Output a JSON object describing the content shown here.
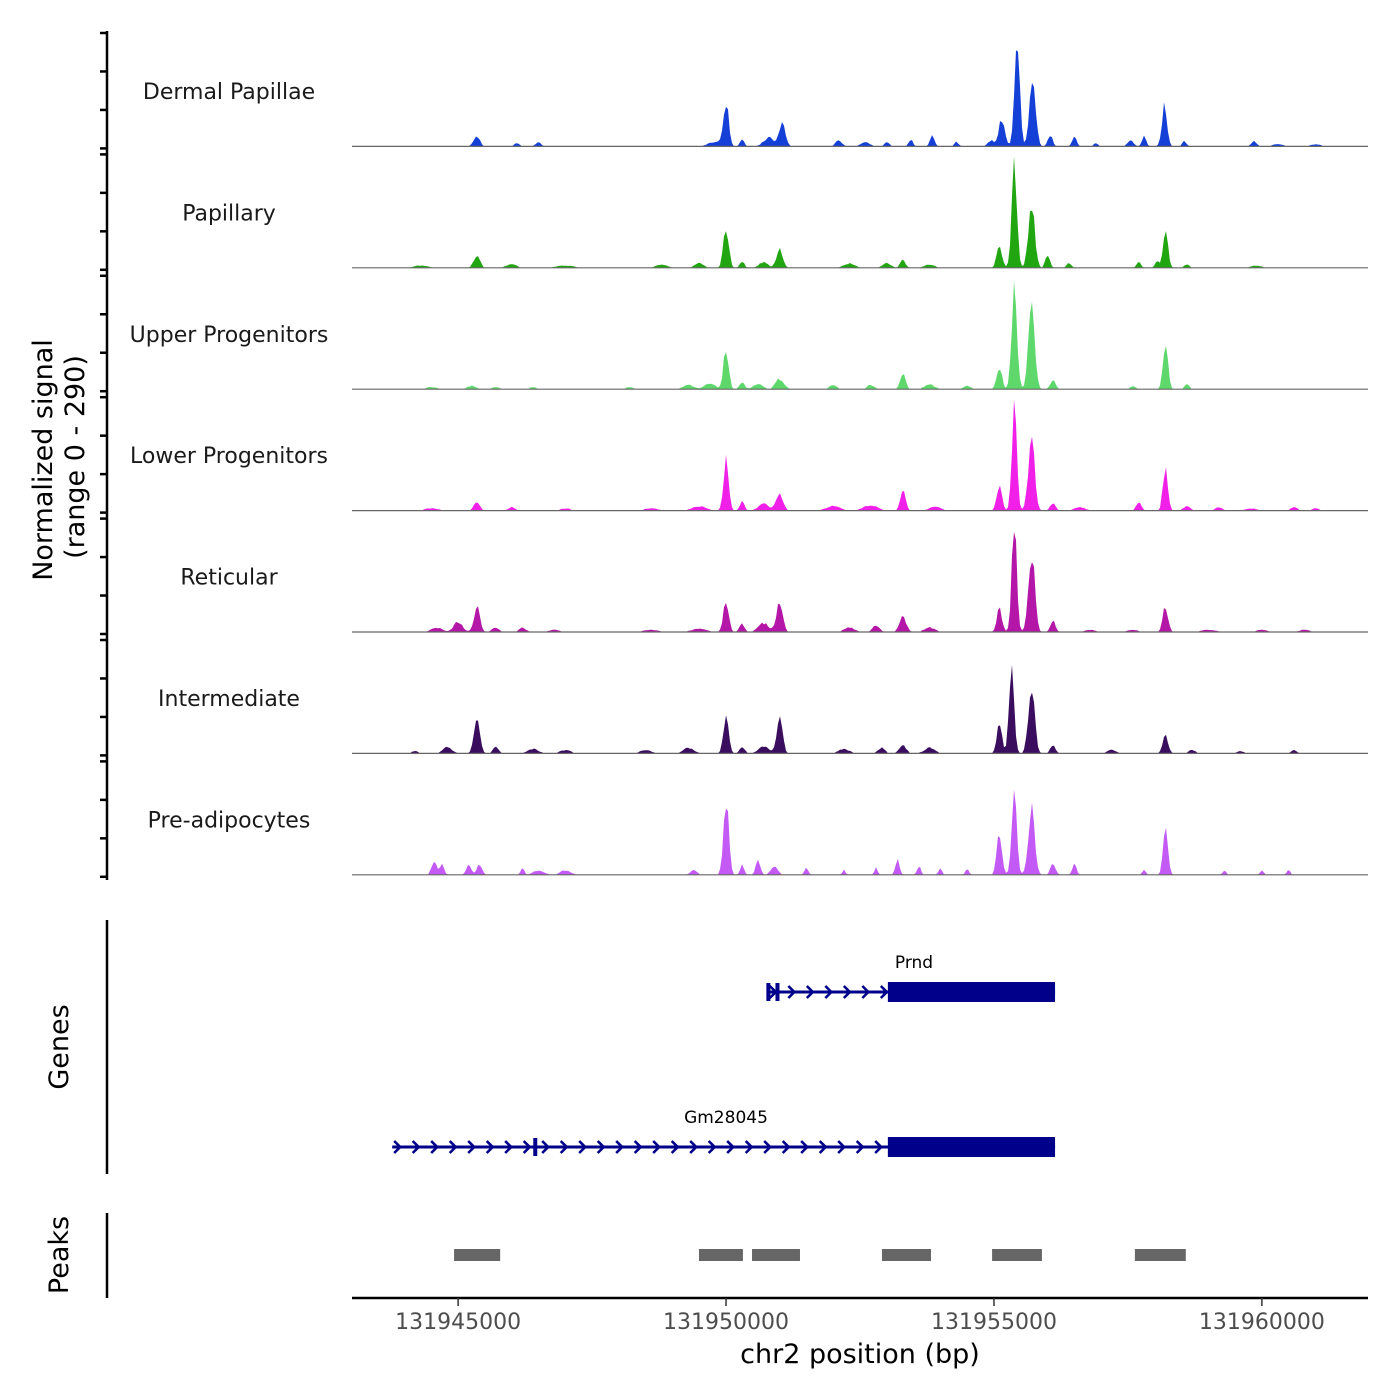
{
  "chart_data": {
    "type": "area",
    "title": "",
    "ylabel": "Normalized signal\n(range 0 - 290)",
    "ylabel_lines": [
      "Normalized signal",
      "(range 0 - 290)"
    ],
    "ylim": [
      0,
      290
    ],
    "xlabel": "chr2 position (bp)",
    "xlim": [
      131943020,
      131961980
    ],
    "x_ticks": [
      131945000,
      131950000,
      131955000,
      131960000
    ],
    "x_tick_labels": [
      "131945000",
      "131950000",
      "131955000",
      "131960000"
    ],
    "series": [
      {
        "name": "Dermal Papillae",
        "color": "#1540D8",
        "peaks": [
          [
            131945350,
            0.09,
            180
          ],
          [
            131946100,
            0.03,
            150
          ],
          [
            131946500,
            0.04,
            150
          ],
          [
            131949800,
            0.04,
            400
          ],
          [
            131950000,
            0.4,
            150
          ],
          [
            131950300,
            0.06,
            120
          ],
          [
            131950800,
            0.08,
            300
          ],
          [
            131951050,
            0.22,
            180
          ],
          [
            131952100,
            0.05,
            200
          ],
          [
            131952600,
            0.04,
            250
          ],
          [
            131953000,
            0.04,
            150
          ],
          [
            131953450,
            0.06,
            120
          ],
          [
            131953850,
            0.1,
            130
          ],
          [
            131954300,
            0.04,
            120
          ],
          [
            131954950,
            0.05,
            200
          ],
          [
            131955150,
            0.25,
            170
          ],
          [
            131955430,
            0.98,
            150
          ],
          [
            131955720,
            0.55,
            180
          ],
          [
            131956050,
            0.1,
            140
          ],
          [
            131956500,
            0.08,
            130
          ],
          [
            131956900,
            0.03,
            120
          ],
          [
            131957550,
            0.06,
            160
          ],
          [
            131957800,
            0.09,
            120
          ],
          [
            131958180,
            0.35,
            150
          ],
          [
            131958550,
            0.05,
            120
          ],
          [
            131959850,
            0.05,
            150
          ],
          [
            131960300,
            0.02,
            300
          ],
          [
            131961000,
            0.02,
            300
          ]
        ]
      },
      {
        "name": "Papillary",
        "color": "#21A612",
        "peaks": [
          [
            131944300,
            0.02,
            400
          ],
          [
            131945350,
            0.11,
            180
          ],
          [
            131946000,
            0.03,
            300
          ],
          [
            131947000,
            0.02,
            500
          ],
          [
            131948800,
            0.03,
            300
          ],
          [
            131949500,
            0.04,
            250
          ],
          [
            131950000,
            0.38,
            150
          ],
          [
            131950300,
            0.06,
            120
          ],
          [
            131950700,
            0.05,
            250
          ],
          [
            131951000,
            0.17,
            180
          ],
          [
            131952300,
            0.04,
            300
          ],
          [
            131953000,
            0.04,
            250
          ],
          [
            131953300,
            0.07,
            150
          ],
          [
            131953800,
            0.03,
            300
          ],
          [
            131955100,
            0.21,
            150
          ],
          [
            131955380,
            0.95,
            150
          ],
          [
            131955700,
            0.58,
            180
          ],
          [
            131956000,
            0.12,
            130
          ],
          [
            131956400,
            0.04,
            150
          ],
          [
            131957700,
            0.05,
            130
          ],
          [
            131958050,
            0.06,
            120
          ],
          [
            131958200,
            0.33,
            140
          ],
          [
            131958600,
            0.03,
            150
          ],
          [
            131959900,
            0.02,
            300
          ]
        ]
      },
      {
        "name": "Upper Progenitors",
        "color": "#5ED86B",
        "peaks": [
          [
            131944500,
            0.02,
            300
          ],
          [
            131945250,
            0.03,
            250
          ],
          [
            131945700,
            0.02,
            200
          ],
          [
            131946400,
            0.02,
            200
          ],
          [
            131948200,
            0.02,
            200
          ],
          [
            131949300,
            0.04,
            300
          ],
          [
            131949700,
            0.05,
            300
          ],
          [
            131950000,
            0.36,
            150
          ],
          [
            131950300,
            0.06,
            150
          ],
          [
            131950600,
            0.05,
            250
          ],
          [
            131951000,
            0.09,
            250
          ],
          [
            131952000,
            0.04,
            200
          ],
          [
            131952700,
            0.04,
            200
          ],
          [
            131953300,
            0.13,
            150
          ],
          [
            131953800,
            0.04,
            300
          ],
          [
            131954500,
            0.03,
            200
          ],
          [
            131955100,
            0.2,
            150
          ],
          [
            131955380,
            0.95,
            150
          ],
          [
            131955700,
            0.7,
            180
          ],
          [
            131956100,
            0.08,
            150
          ],
          [
            131957600,
            0.03,
            150
          ],
          [
            131958200,
            0.43,
            140
          ],
          [
            131958600,
            0.04,
            150
          ]
        ]
      },
      {
        "name": "Lower Progenitors",
        "color": "#F020E8",
        "peaks": [
          [
            131944500,
            0.02,
            400
          ],
          [
            131945350,
            0.08,
            170
          ],
          [
            131946000,
            0.03,
            200
          ],
          [
            131947000,
            0.02,
            300
          ],
          [
            131948600,
            0.02,
            400
          ],
          [
            131949500,
            0.04,
            400
          ],
          [
            131950000,
            0.45,
            150
          ],
          [
            131950300,
            0.08,
            140
          ],
          [
            131950700,
            0.06,
            300
          ],
          [
            131951000,
            0.14,
            200
          ],
          [
            131952000,
            0.04,
            400
          ],
          [
            131952700,
            0.05,
            400
          ],
          [
            131953300,
            0.18,
            150
          ],
          [
            131953900,
            0.04,
            300
          ],
          [
            131955100,
            0.22,
            150
          ],
          [
            131955380,
            0.98,
            140
          ],
          [
            131955700,
            0.65,
            180
          ],
          [
            131956100,
            0.07,
            150
          ],
          [
            131956600,
            0.03,
            300
          ],
          [
            131957700,
            0.07,
            150
          ],
          [
            131958200,
            0.4,
            140
          ],
          [
            131958600,
            0.04,
            200
          ],
          [
            131959200,
            0.03,
            200
          ],
          [
            131959800,
            0.02,
            300
          ],
          [
            131960600,
            0.03,
            200
          ],
          [
            131961000,
            0.02,
            200
          ]
        ]
      },
      {
        "name": "Reticular",
        "color": "#B416A8",
        "peaks": [
          [
            131944600,
            0.04,
            300
          ],
          [
            131945000,
            0.09,
            250
          ],
          [
            131945350,
            0.22,
            170
          ],
          [
            131945700,
            0.04,
            200
          ],
          [
            131946200,
            0.04,
            200
          ],
          [
            131946800,
            0.02,
            300
          ],
          [
            131948600,
            0.02,
            400
          ],
          [
            131949500,
            0.03,
            400
          ],
          [
            131950000,
            0.3,
            150
          ],
          [
            131950300,
            0.07,
            150
          ],
          [
            131950700,
            0.08,
            300
          ],
          [
            131951000,
            0.28,
            180
          ],
          [
            131952300,
            0.04,
            300
          ],
          [
            131952800,
            0.06,
            200
          ],
          [
            131953300,
            0.13,
            200
          ],
          [
            131953800,
            0.04,
            300
          ],
          [
            131955100,
            0.2,
            150
          ],
          [
            131955380,
            0.95,
            140
          ],
          [
            131955700,
            0.72,
            180
          ],
          [
            131956100,
            0.1,
            140
          ],
          [
            131956800,
            0.02,
            300
          ],
          [
            131957600,
            0.02,
            300
          ],
          [
            131958200,
            0.23,
            150
          ],
          [
            131959000,
            0.02,
            400
          ],
          [
            131960000,
            0.02,
            300
          ],
          [
            131960800,
            0.02,
            300
          ]
        ]
      },
      {
        "name": "Intermediate",
        "color": "#3A0D5E",
        "peaks": [
          [
            131944200,
            0.02,
            200
          ],
          [
            131944800,
            0.06,
            250
          ],
          [
            131945350,
            0.3,
            170
          ],
          [
            131945700,
            0.07,
            150
          ],
          [
            131946400,
            0.04,
            300
          ],
          [
            131947000,
            0.03,
            300
          ],
          [
            131948500,
            0.03,
            300
          ],
          [
            131949300,
            0.05,
            300
          ],
          [
            131950000,
            0.32,
            150
          ],
          [
            131950300,
            0.06,
            150
          ],
          [
            131950700,
            0.06,
            300
          ],
          [
            131951000,
            0.3,
            170
          ],
          [
            131952200,
            0.04,
            300
          ],
          [
            131952900,
            0.05,
            200
          ],
          [
            131953300,
            0.07,
            200
          ],
          [
            131953800,
            0.05,
            300
          ],
          [
            131955100,
            0.25,
            150
          ],
          [
            131955330,
            0.7,
            150
          ],
          [
            131955700,
            0.6,
            180
          ],
          [
            131956100,
            0.08,
            140
          ],
          [
            131957200,
            0.03,
            250
          ],
          [
            131958200,
            0.15,
            160
          ],
          [
            131958700,
            0.03,
            200
          ],
          [
            131959600,
            0.02,
            200
          ],
          [
            131960600,
            0.03,
            150
          ]
        ]
      },
      {
        "name": "Pre-adipocytes",
        "color": "#C35AF5",
        "peaks": [
          [
            131944550,
            0.12,
            150
          ],
          [
            131944700,
            0.1,
            120
          ],
          [
            131945200,
            0.1,
            140
          ],
          [
            131945400,
            0.1,
            140
          ],
          [
            131946200,
            0.06,
            100
          ],
          [
            131946500,
            0.04,
            300
          ],
          [
            131947000,
            0.04,
            300
          ],
          [
            131949400,
            0.04,
            200
          ],
          [
            131950000,
            0.68,
            150
          ],
          [
            131950300,
            0.09,
            110
          ],
          [
            131950600,
            0.13,
            130
          ],
          [
            131950900,
            0.07,
            200
          ],
          [
            131951500,
            0.07,
            100
          ],
          [
            131952200,
            0.05,
            80
          ],
          [
            131952800,
            0.06,
            100
          ],
          [
            131953200,
            0.13,
            120
          ],
          [
            131953600,
            0.08,
            100
          ],
          [
            131954000,
            0.06,
            100
          ],
          [
            131954500,
            0.05,
            100
          ],
          [
            131955100,
            0.35,
            150
          ],
          [
            131955380,
            0.86,
            140
          ],
          [
            131955700,
            0.6,
            180
          ],
          [
            131956100,
            0.1,
            140
          ],
          [
            131956500,
            0.1,
            120
          ],
          [
            131957800,
            0.05,
            100
          ],
          [
            131958200,
            0.38,
            140
          ],
          [
            131959300,
            0.04,
            100
          ],
          [
            131960000,
            0.04,
            100
          ],
          [
            131960500,
            0.04,
            100
          ]
        ]
      }
    ],
    "genes": [
      {
        "name": "Prnd",
        "strand": "+",
        "start": 131950780,
        "end": 131956140,
        "small_exons": [
          131950790,
          131950960
        ],
        "thick_start": 131953020,
        "thick_end": 131956140
      },
      {
        "name": "Gm28045",
        "strand": "+",
        "start": 131943770,
        "end": 131956140,
        "small_exons": [
          131946440
        ],
        "thick_start": 131953020,
        "thick_end": 131956140
      }
    ],
    "peaks_track": [
      [
        131944925,
        131945785
      ],
      [
        131949495,
        131950315
      ],
      [
        131950485,
        131951380
      ],
      [
        131952910,
        131953825
      ],
      [
        131954965,
        131955895
      ],
      [
        131957630,
        131958580
      ]
    ],
    "panel_labels": {
      "genes": "Genes",
      "peaks": "Peaks"
    },
    "colors": {
      "gene": "#00008B",
      "peak": "#666666",
      "baseline": "#666666",
      "axis": "#000000"
    }
  }
}
